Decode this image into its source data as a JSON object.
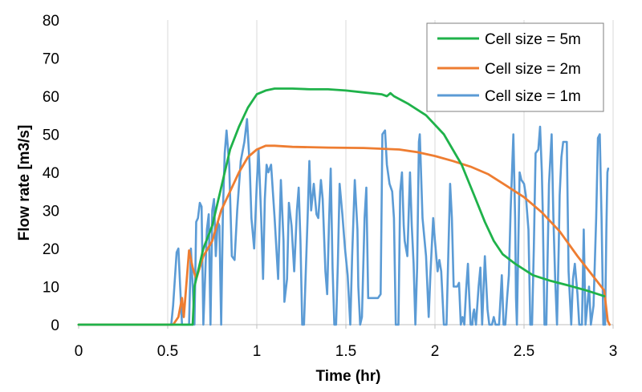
{
  "chart_data": {
    "type": "line",
    "title": "",
    "xlabel": "Time (hr)",
    "ylabel": "Flow rate [m3/s]",
    "xlim": [
      0,
      3
    ],
    "ylim": [
      0,
      80
    ],
    "x_ticks": [
      0,
      0.5,
      1,
      1.5,
      2,
      2.5,
      3
    ],
    "x_tick_labels": [
      "0",
      "0.5",
      "1",
      "1.5",
      "2",
      "2.5",
      "3"
    ],
    "y_ticks": [
      0,
      10,
      20,
      30,
      40,
      50,
      60,
      70,
      80
    ],
    "y_tick_labels": [
      "0",
      "10",
      "20",
      "30",
      "40",
      "50",
      "60",
      "70",
      "80"
    ],
    "grid": "vertical",
    "legend_position": "top-right",
    "series": [
      {
        "name": "Cell size = 5m",
        "color": "#1fb24a",
        "points": [
          [
            0,
            0
          ],
          [
            0.5,
            0
          ],
          [
            0.64,
            0
          ],
          [
            0.65,
            10
          ],
          [
            0.7,
            20
          ],
          [
            0.75,
            26
          ],
          [
            0.8,
            36
          ],
          [
            0.85,
            46
          ],
          [
            0.9,
            52
          ],
          [
            0.95,
            57
          ],
          [
            1.0,
            60.5
          ],
          [
            1.05,
            61.5
          ],
          [
            1.1,
            62
          ],
          [
            1.2,
            62
          ],
          [
            1.3,
            61.8
          ],
          [
            1.4,
            61.8
          ],
          [
            1.5,
            61.5
          ],
          [
            1.6,
            61
          ],
          [
            1.7,
            60.5
          ],
          [
            1.73,
            60
          ],
          [
            1.75,
            60.8
          ],
          [
            1.77,
            60
          ],
          [
            1.85,
            58
          ],
          [
            1.95,
            55
          ],
          [
            2.05,
            50
          ],
          [
            2.15,
            42
          ],
          [
            2.22,
            34
          ],
          [
            2.28,
            27
          ],
          [
            2.33,
            22
          ],
          [
            2.38,
            18.5
          ],
          [
            2.45,
            16
          ],
          [
            2.55,
            13
          ],
          [
            2.65,
            11.5
          ],
          [
            2.75,
            10.3
          ],
          [
            2.85,
            9
          ],
          [
            2.95,
            7.5
          ]
        ]
      },
      {
        "name": "Cell size = 2m",
        "color": "#ee7d31",
        "points": [
          [
            0,
            0
          ],
          [
            0.5,
            0
          ],
          [
            0.53,
            0
          ],
          [
            0.56,
            2
          ],
          [
            0.58,
            7
          ],
          [
            0.59,
            2
          ],
          [
            0.62,
            19.5
          ],
          [
            0.64,
            15
          ],
          [
            0.66,
            12
          ],
          [
            0.7,
            18
          ],
          [
            0.75,
            22
          ],
          [
            0.8,
            30
          ],
          [
            0.85,
            35
          ],
          [
            0.9,
            40
          ],
          [
            0.95,
            44
          ],
          [
            1.0,
            46
          ],
          [
            1.05,
            47
          ],
          [
            1.1,
            47
          ],
          [
            1.2,
            46.7
          ],
          [
            1.4,
            46.5
          ],
          [
            1.6,
            46.4
          ],
          [
            1.8,
            46
          ],
          [
            1.9,
            45.3
          ],
          [
            2.0,
            44.3
          ],
          [
            2.1,
            43
          ],
          [
            2.2,
            41.5
          ],
          [
            2.3,
            39.5
          ],
          [
            2.4,
            36.5
          ],
          [
            2.5,
            33.5
          ],
          [
            2.6,
            29.5
          ],
          [
            2.7,
            24.5
          ],
          [
            2.8,
            18
          ],
          [
            2.9,
            12
          ],
          [
            2.95,
            9
          ],
          [
            2.97,
            1
          ],
          [
            2.98,
            0
          ]
        ]
      },
      {
        "name": "Cell size = 1m",
        "color": "#5b9bd5",
        "points": [
          [
            0,
            0
          ],
          [
            0.52,
            0
          ],
          [
            0.53,
            5
          ],
          [
            0.55,
            19
          ],
          [
            0.56,
            20
          ],
          [
            0.57,
            10
          ],
          [
            0.58,
            0
          ],
          [
            0.6,
            0
          ],
          [
            0.62,
            0
          ],
          [
            0.63,
            20
          ],
          [
            0.65,
            0
          ],
          [
            0.66,
            27
          ],
          [
            0.67,
            28
          ],
          [
            0.68,
            32
          ],
          [
            0.69,
            31
          ],
          [
            0.7,
            0
          ],
          [
            0.72,
            25
          ],
          [
            0.73,
            29
          ],
          [
            0.74,
            0
          ],
          [
            0.75,
            30
          ],
          [
            0.76,
            33
          ],
          [
            0.77,
            18
          ],
          [
            0.78,
            27
          ],
          [
            0.79,
            26
          ],
          [
            0.8,
            0
          ],
          [
            0.81,
            30
          ],
          [
            0.82,
            45
          ],
          [
            0.83,
            51
          ],
          [
            0.845,
            42
          ],
          [
            0.86,
            18
          ],
          [
            0.875,
            17
          ],
          [
            0.89,
            30
          ],
          [
            0.91,
            43
          ],
          [
            0.93,
            48
          ],
          [
            0.945,
            54
          ],
          [
            0.96,
            42
          ],
          [
            0.97,
            28
          ],
          [
            0.985,
            20
          ],
          [
            1.0,
            37
          ],
          [
            1.01,
            46
          ],
          [
            1.025,
            28
          ],
          [
            1.035,
            12
          ],
          [
            1.045,
            33
          ],
          [
            1.055,
            42
          ],
          [
            1.065,
            40
          ],
          [
            1.08,
            42
          ],
          [
            1.1,
            28
          ],
          [
            1.12,
            12
          ],
          [
            1.135,
            38
          ],
          [
            1.15,
            22
          ],
          [
            1.155,
            6
          ],
          [
            1.17,
            12
          ],
          [
            1.18,
            32
          ],
          [
            1.195,
            26
          ],
          [
            1.21,
            14
          ],
          [
            1.225,
            30
          ],
          [
            1.235,
            36
          ],
          [
            1.245,
            22
          ],
          [
            1.255,
            0
          ],
          [
            1.265,
            0
          ],
          [
            1.285,
            28
          ],
          [
            1.295,
            43
          ],
          [
            1.305,
            30
          ],
          [
            1.32,
            37
          ],
          [
            1.335,
            29
          ],
          [
            1.345,
            28
          ],
          [
            1.36,
            38
          ],
          [
            1.37,
            33
          ],
          [
            1.385,
            14
          ],
          [
            1.395,
            8
          ],
          [
            1.405,
            26
          ],
          [
            1.415,
            41
          ],
          [
            1.425,
            15
          ],
          [
            1.435,
            0
          ],
          [
            1.445,
            0
          ],
          [
            1.455,
            16
          ],
          [
            1.465,
            37
          ],
          [
            1.48,
            29
          ],
          [
            1.495,
            20
          ],
          [
            1.51,
            13
          ],
          [
            1.525,
            0
          ],
          [
            1.535,
            18
          ],
          [
            1.55,
            38
          ],
          [
            1.565,
            25
          ],
          [
            1.57,
            10
          ],
          [
            1.58,
            0
          ],
          [
            1.59,
            2
          ],
          [
            1.605,
            28
          ],
          [
            1.615,
            36
          ],
          [
            1.625,
            7
          ],
          [
            1.65,
            7
          ],
          [
            1.68,
            7
          ],
          [
            1.695,
            8
          ],
          [
            1.705,
            50
          ],
          [
            1.72,
            51
          ],
          [
            1.73,
            42
          ],
          [
            1.745,
            37
          ],
          [
            1.76,
            35
          ],
          [
            1.77,
            28
          ],
          [
            1.78,
            0
          ],
          [
            1.795,
            0
          ],
          [
            1.805,
            35
          ],
          [
            1.815,
            40
          ],
          [
            1.825,
            26
          ],
          [
            1.83,
            22
          ],
          [
            1.845,
            18
          ],
          [
            1.86,
            40
          ],
          [
            1.87,
            26
          ],
          [
            1.88,
            16
          ],
          [
            1.89,
            0
          ],
          [
            1.9,
            15
          ],
          [
            1.91,
            48
          ],
          [
            1.915,
            50
          ],
          [
            1.93,
            28
          ],
          [
            1.95,
            18
          ],
          [
            1.965,
            2
          ],
          [
            1.975,
            14
          ],
          [
            1.99,
            28
          ],
          [
            2.0,
            22
          ],
          [
            2.015,
            14
          ],
          [
            2.025,
            17
          ],
          [
            2.035,
            14
          ],
          [
            2.05,
            0
          ],
          [
            2.065,
            0
          ],
          [
            2.075,
            19
          ],
          [
            2.085,
            37
          ],
          [
            2.095,
            28
          ],
          [
            2.105,
            10
          ],
          [
            2.125,
            10
          ],
          [
            2.135,
            11
          ],
          [
            2.145,
            0
          ],
          [
            2.155,
            2
          ],
          [
            2.165,
            0
          ],
          [
            2.175,
            9
          ],
          [
            2.185,
            16
          ],
          [
            2.19,
            10
          ],
          [
            2.2,
            0
          ],
          [
            2.21,
            0
          ],
          [
            2.215,
            3
          ],
          [
            2.22,
            4
          ],
          [
            2.23,
            0
          ],
          [
            2.245,
            10
          ],
          [
            2.255,
            15
          ],
          [
            2.265,
            0
          ],
          [
            2.28,
            18
          ],
          [
            2.295,
            4
          ],
          [
            2.305,
            0
          ],
          [
            2.32,
            0
          ],
          [
            2.33,
            2
          ],
          [
            2.34,
            0
          ],
          [
            2.36,
            0
          ],
          [
            2.375,
            13
          ],
          [
            2.385,
            0
          ],
          [
            2.395,
            0
          ],
          [
            2.405,
            7
          ],
          [
            2.415,
            13
          ],
          [
            2.425,
            30
          ],
          [
            2.44,
            50
          ],
          [
            2.45,
            28
          ],
          [
            2.455,
            7
          ],
          [
            2.46,
            0
          ],
          [
            2.475,
            40
          ],
          [
            2.485,
            38
          ],
          [
            2.5,
            37
          ],
          [
            2.51,
            34
          ],
          [
            2.525,
            25
          ],
          [
            2.535,
            0
          ],
          [
            2.545,
            0
          ],
          [
            2.555,
            20
          ],
          [
            2.565,
            45
          ],
          [
            2.58,
            46
          ],
          [
            2.59,
            52
          ],
          [
            2.6,
            40
          ],
          [
            2.605,
            30
          ],
          [
            2.615,
            0
          ],
          [
            2.625,
            0
          ],
          [
            2.64,
            37
          ],
          [
            2.655,
            50
          ],
          [
            2.665,
            28
          ],
          [
            2.675,
            12
          ],
          [
            2.685,
            0
          ],
          [
            2.695,
            21
          ],
          [
            2.7,
            34
          ],
          [
            2.71,
            44
          ],
          [
            2.72,
            48
          ],
          [
            2.74,
            48
          ],
          [
            2.75,
            14
          ],
          [
            2.765,
            0
          ],
          [
            2.775,
            12
          ],
          [
            2.785,
            16
          ],
          [
            2.8,
            8
          ],
          [
            2.81,
            0
          ],
          [
            2.825,
            0
          ],
          [
            2.835,
            25
          ],
          [
            2.845,
            0
          ],
          [
            2.855,
            5
          ],
          [
            2.865,
            10
          ],
          [
            2.875,
            0
          ],
          [
            2.89,
            5
          ],
          [
            2.905,
            28
          ],
          [
            2.915,
            49
          ],
          [
            2.925,
            50
          ],
          [
            2.935,
            28
          ],
          [
            2.945,
            0
          ],
          [
            2.955,
            0
          ],
          [
            2.962,
            25
          ],
          [
            2.968,
            40
          ],
          [
            2.972,
            41
          ]
        ]
      }
    ]
  }
}
